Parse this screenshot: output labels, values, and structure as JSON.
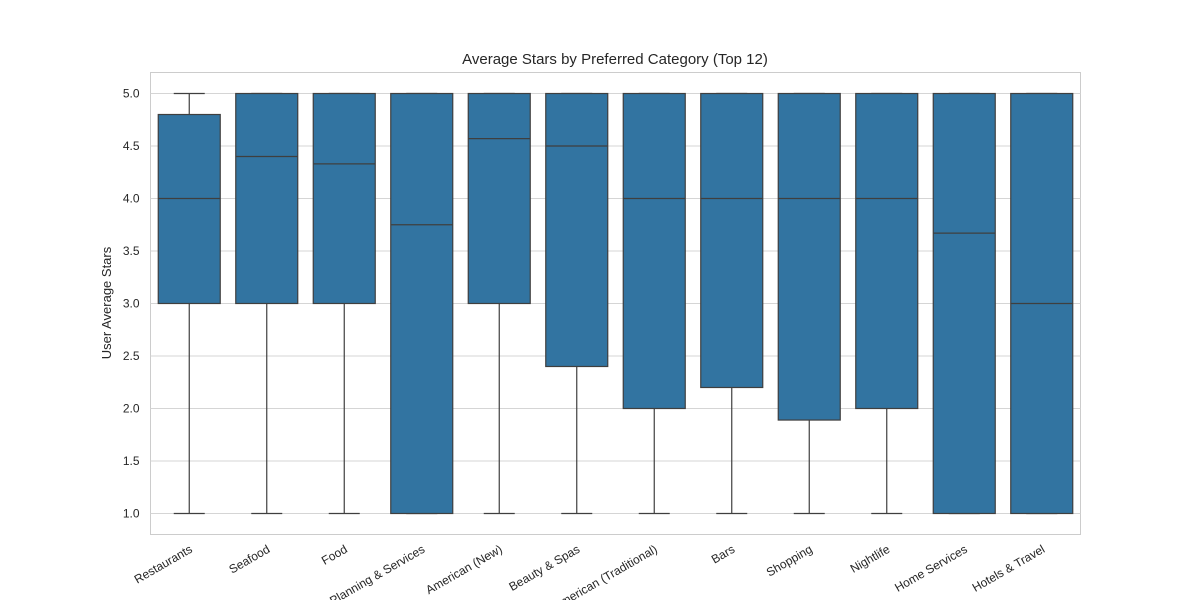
{
  "chart_data": {
    "type": "box",
    "title": "Average Stars by Preferred Category (Top 12)",
    "xlabel": "",
    "ylabel": "User Average Stars",
    "ylim": [
      0.8,
      5.2
    ],
    "yticks": [
      "1.0",
      "1.5",
      "2.0",
      "2.5",
      "3.0",
      "3.5",
      "4.0",
      "4.5",
      "5.0"
    ],
    "grid": true,
    "color": "#3274a1",
    "categories": [
      "Restaurants",
      "Seafood",
      "Food",
      "Event Planning & Services",
      "American (New)",
      "Beauty & Spas",
      "American (Traditional)",
      "Bars",
      "Shopping",
      "Nightlife",
      "Home Services",
      "Hotels & Travel"
    ],
    "boxes": [
      {
        "min": 1.0,
        "q1": 3.0,
        "median": 4.0,
        "q3": 4.8,
        "max": 5.0
      },
      {
        "min": 1.0,
        "q1": 3.0,
        "median": 4.4,
        "q3": 5.0,
        "max": 5.0
      },
      {
        "min": 1.0,
        "q1": 3.0,
        "median": 4.33,
        "q3": 5.0,
        "max": 5.0
      },
      {
        "min": 1.0,
        "q1": 1.0,
        "median": 3.75,
        "q3": 5.0,
        "max": 5.0
      },
      {
        "min": 1.0,
        "q1": 3.0,
        "median": 4.57,
        "q3": 5.0,
        "max": 5.0
      },
      {
        "min": 1.0,
        "q1": 2.4,
        "median": 4.5,
        "q3": 5.0,
        "max": 5.0
      },
      {
        "min": 1.0,
        "q1": 2.0,
        "median": 4.0,
        "q3": 5.0,
        "max": 5.0
      },
      {
        "min": 1.0,
        "q1": 2.2,
        "median": 4.0,
        "q3": 5.0,
        "max": 5.0
      },
      {
        "min": 1.0,
        "q1": 1.89,
        "median": 4.0,
        "q3": 5.0,
        "max": 5.0
      },
      {
        "min": 1.0,
        "q1": 2.0,
        "median": 4.0,
        "q3": 5.0,
        "max": 5.0
      },
      {
        "min": 1.0,
        "q1": 1.0,
        "median": 3.67,
        "q3": 5.0,
        "max": 5.0
      },
      {
        "min": 1.0,
        "q1": 1.0,
        "median": 3.0,
        "q3": 5.0,
        "max": 5.0
      }
    ]
  }
}
